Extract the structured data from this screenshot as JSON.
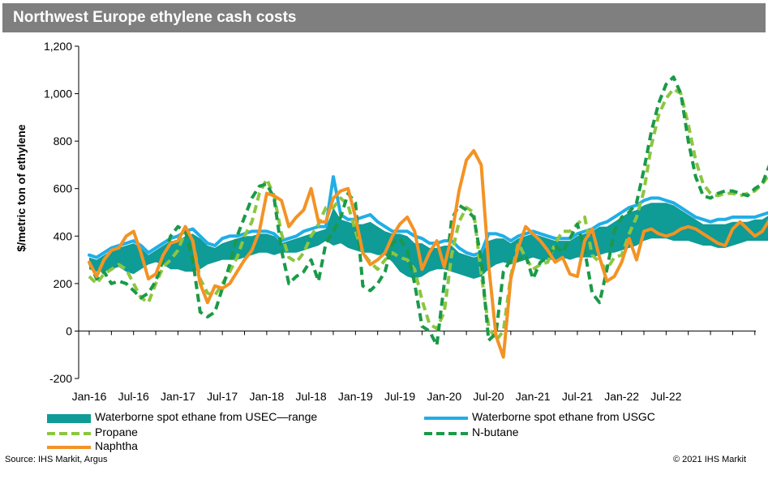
{
  "header": {
    "title": "Northwest Europe ethylene cash costs"
  },
  "footer": {
    "source": "Source: IHS Markit, Argus",
    "copyright": "© 2021 IHS Markit"
  },
  "colors": {
    "range": "#0f9b96",
    "usgc": "#20aee6",
    "propane": "#8cc63f",
    "nbutane": "#1a9a48",
    "naphtha": "#f39324",
    "title_bg": "#7f7f7f"
  },
  "chart_data": {
    "type": "line",
    "title": "Northwest Europe ethylene cash costs",
    "ylabel": "$/metric ton of ethylene",
    "xlabel": "",
    "ylim": [
      -200,
      1200
    ],
    "yticks": [
      -200,
      0,
      200,
      400,
      600,
      800,
      1000,
      1200
    ],
    "ytick_labels": [
      "-200",
      "0",
      "200",
      "400",
      "600",
      "800",
      "1,000",
      "1,200"
    ],
    "xticks": [
      "Jan-16",
      "Jul-16",
      "Jan-17",
      "Jul-17",
      "Jan-18",
      "Jul-18",
      "Jan-19",
      "Jul-19",
      "Jan-20",
      "Jul-20",
      "Jan-21",
      "Jul-21",
      "Jan-22",
      "Jul-22"
    ],
    "grid": false,
    "legend_position": "bottom",
    "x_start": "Jan-16",
    "x_step": "1 month",
    "series": [
      {
        "name": "Waterborne spot ethane from USEC—range",
        "kind": "range",
        "low": [
          260,
          250,
          250,
          260,
          270,
          250,
          240,
          260,
          280,
          290,
          280,
          260,
          260,
          250,
          250,
          260,
          280,
          290,
          300,
          300,
          300,
          310,
          320,
          330,
          330,
          320,
          330,
          330,
          330,
          340,
          350,
          360,
          380,
          360,
          370,
          350,
          340,
          330,
          330,
          320,
          320,
          290,
          250,
          230,
          220,
          230,
          250,
          260,
          260,
          250,
          240,
          230,
          220,
          230,
          260,
          280,
          290,
          280,
          290,
          300,
          310,
          300,
          300,
          300,
          310,
          300,
          310,
          310,
          310,
          320,
          330,
          330,
          340,
          350,
          360,
          380,
          390,
          390,
          390,
          380,
          380,
          380,
          370,
          360,
          360,
          350,
          350,
          360,
          370,
          380,
          380,
          380,
          380
        ],
        "high": [
          310,
          300,
          320,
          340,
          350,
          360,
          370,
          350,
          320,
          340,
          360,
          380,
          380,
          400,
          410,
          390,
          360,
          350,
          370,
          380,
          390,
          400,
          400,
          410,
          410,
          400,
          370,
          380,
          390,
          400,
          410,
          420,
          430,
          520,
          470,
          460,
          450,
          450,
          460,
          440,
          420,
          410,
          410,
          400,
          370,
          370,
          350,
          350,
          360,
          360,
          330,
          320,
          310,
          320,
          380,
          390,
          390,
          370,
          390,
          400,
          410,
          400,
          390,
          380,
          380,
          380,
          400,
          410,
          420,
          440,
          440,
          460,
          480,
          500,
          510,
          530,
          540,
          540,
          540,
          530,
          510,
          490,
          470,
          450,
          450,
          450,
          450,
          460,
          460,
          460,
          470,
          470,
          490
        ]
      },
      {
        "name": "Waterborne spot ethane from USGC",
        "kind": "line",
        "values": [
          320,
          310,
          330,
          350,
          360,
          370,
          380,
          360,
          330,
          350,
          370,
          390,
          400,
          420,
          430,
          400,
          370,
          360,
          390,
          400,
          400,
          410,
          420,
          420,
          420,
          410,
          380,
          390,
          400,
          420,
          430,
          440,
          440,
          650,
          490,
          470,
          470,
          480,
          490,
          460,
          440,
          420,
          420,
          420,
          400,
          390,
          370,
          370,
          380,
          380,
          350,
          330,
          320,
          330,
          410,
          410,
          400,
          380,
          400,
          410,
          420,
          410,
          400,
          390,
          390,
          390,
          410,
          420,
          430,
          450,
          460,
          480,
          500,
          520,
          530,
          550,
          560,
          560,
          550,
          540,
          520,
          500,
          480,
          470,
          460,
          470,
          470,
          480,
          480,
          480,
          480,
          490,
          500
        ]
      },
      {
        "name": "Propane",
        "kind": "line",
        "dash": true,
        "values": [
          230,
          200,
          240,
          260,
          280,
          260,
          200,
          140,
          120,
          200,
          270,
          300,
          340,
          420,
          380,
          220,
          160,
          150,
          200,
          250,
          310,
          400,
          460,
          580,
          640,
          570,
          410,
          310,
          290,
          330,
          400,
          450,
          520,
          520,
          560,
          530,
          420,
          330,
          290,
          260,
          300,
          330,
          310,
          300,
          260,
          130,
          30,
          10,
          80,
          320,
          460,
          520,
          500,
          240,
          20,
          -40,
          0,
          230,
          370,
          310,
          260,
          280,
          290,
          370,
          420,
          420,
          450,
          480,
          320,
          290,
          260,
          310,
          320,
          410,
          480,
          590,
          780,
          910,
          980,
          1020,
          1000,
          870,
          720,
          620,
          580,
          570,
          580,
          580,
          570,
          580,
          590,
          620,
          660
        ]
      },
      {
        "name": "N-butane",
        "kind": "line",
        "dash": true,
        "values": [
          290,
          220,
          250,
          200,
          210,
          200,
          170,
          140,
          160,
          210,
          300,
          400,
          440,
          420,
          300,
          80,
          60,
          80,
          180,
          280,
          400,
          480,
          560,
          610,
          620,
          560,
          340,
          200,
          230,
          250,
          300,
          210,
          370,
          420,
          480,
          580,
          540,
          190,
          170,
          200,
          250,
          370,
          390,
          340,
          200,
          20,
          0,
          -60,
          200,
          470,
          530,
          510,
          480,
          300,
          -40,
          -10,
          250,
          300,
          300,
          320,
          220,
          290,
          310,
          360,
          330,
          390,
          450,
          340,
          160,
          120,
          260,
          420,
          480,
          500,
          540,
          680,
          840,
          960,
          1040,
          1070,
          1000,
          800,
          650,
          570,
          560,
          580,
          590,
          590,
          580,
          570,
          600,
          620,
          700
        ]
      },
      {
        "name": "Naphtha",
        "kind": "line",
        "values": [
          290,
          230,
          300,
          340,
          350,
          400,
          420,
          330,
          220,
          240,
          320,
          370,
          380,
          440,
          380,
          200,
          120,
          190,
          180,
          200,
          250,
          300,
          340,
          420,
          580,
          570,
          550,
          440,
          480,
          510,
          600,
          460,
          460,
          560,
          590,
          600,
          480,
          330,
          280,
          300,
          330,
          400,
          450,
          480,
          420,
          260,
          330,
          380,
          270,
          400,
          590,
          720,
          760,
          700,
          280,
          -20,
          -110,
          220,
          350,
          440,
          410,
          380,
          340,
          290,
          310,
          240,
          230,
          380,
          430,
          310,
          210,
          230,
          290,
          390,
          300,
          420,
          430,
          410,
          400,
          410,
          430,
          440,
          430,
          410,
          390,
          370,
          360,
          430,
          460,
          430,
          400,
          420,
          470
        ]
      }
    ]
  }
}
